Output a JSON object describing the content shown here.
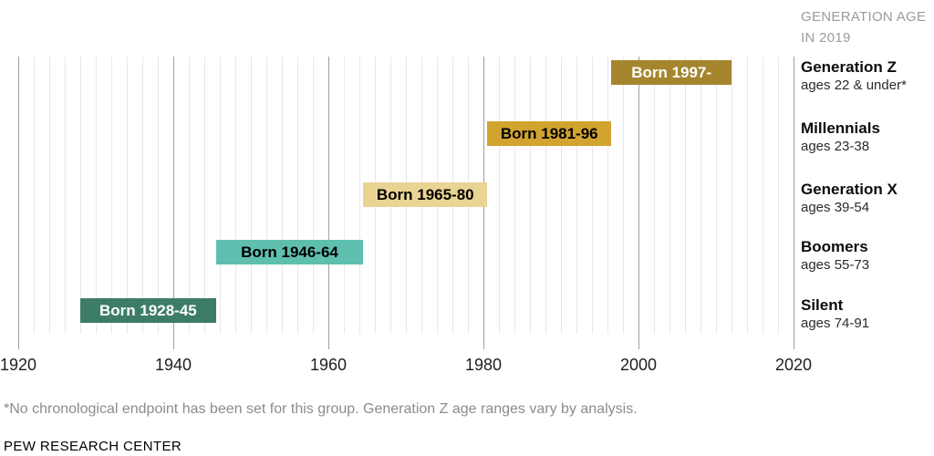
{
  "header": {
    "label": "GENERATION AGE IN 2019"
  },
  "chart_data": {
    "type": "bar",
    "subtype": "horizontal-gantt-timeline",
    "title": "GENERATION AGE IN 2019",
    "axis": {
      "min": 1920,
      "max": 2020,
      "ticks": [
        1920,
        1940,
        1960,
        1980,
        2000,
        2020
      ],
      "minor_grid_step_years": 2,
      "grid": "vertical"
    },
    "legend_position": "right",
    "series": [
      {
        "name": "Generation Z",
        "ages": "ages 22 & under*",
        "bar_label": "Born 1997-",
        "start_year": 1996.5,
        "end_year": 2012,
        "bar_color": "#a5862e",
        "bar_label_color": "#ffffff"
      },
      {
        "name": "Millennials",
        "ages": "ages 23-38",
        "bar_label": "Born 1981-96",
        "start_year": 1980.5,
        "end_year": 1996.5,
        "bar_color": "#d2a42f",
        "bar_label_color": "#000000"
      },
      {
        "name": "Generation X",
        "ages": "ages 39-54",
        "bar_label": "Born 1965-80",
        "start_year": 1964.5,
        "end_year": 1980.5,
        "bar_color": "#ead493",
        "bar_label_color": "#000000"
      },
      {
        "name": "Boomers",
        "ages": "ages 55-73",
        "bar_label": "Born 1946-64",
        "start_year": 1945.5,
        "end_year": 1964.5,
        "bar_color": "#5fbfae",
        "bar_label_color": "#000000"
      },
      {
        "name": "Silent",
        "ages": "ages 74-91",
        "bar_label": "Born 1928-45",
        "start_year": 1928,
        "end_year": 1945.5,
        "bar_color": "#3e7c6a",
        "bar_label_color": "#ffffff"
      }
    ]
  },
  "footnote": "*No chronological endpoint has been set for this group. Generation Z age ranges vary by analysis.",
  "source": "PEW RESEARCH CENTER"
}
